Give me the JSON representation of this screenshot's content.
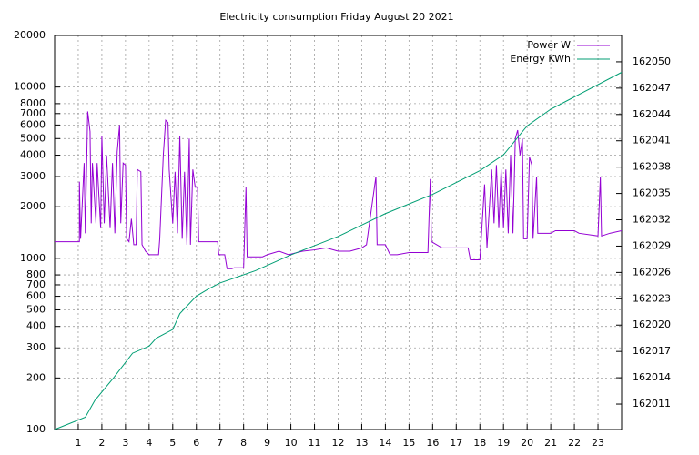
{
  "chart_data": {
    "type": "line",
    "title": "Electricity consumption Friday August 20 2021",
    "ylog": true,
    "grid": true,
    "legend": "top-right",
    "xlim": [
      0,
      24
    ],
    "xticks": [
      1,
      2,
      3,
      4,
      5,
      6,
      7,
      8,
      9,
      10,
      11,
      12,
      13,
      14,
      15,
      16,
      17,
      18,
      19,
      20,
      21,
      22,
      23
    ],
    "ylim": [
      100,
      20000
    ],
    "yticks": [
      100,
      200,
      300,
      400,
      500,
      600,
      700,
      800,
      1000,
      2000,
      3000,
      4000,
      5000,
      6000,
      7000,
      8000,
      10000,
      20000
    ],
    "y2lim": [
      162008.1,
      162053
    ],
    "y2ticks": [
      162011,
      162014,
      162017,
      162020,
      162023,
      162026,
      162029,
      162032,
      162035,
      162038,
      162041,
      162044,
      162047,
      162050
    ],
    "series": [
      {
        "name": "Power W",
        "color": "#9400d3",
        "x": [
          0,
          1.05,
          1.05,
          1.1,
          1.25,
          1.3,
          1.4,
          1.5,
          1.55,
          1.6,
          1.75,
          1.8,
          1.95,
          2.0,
          2.1,
          2.2,
          2.35,
          2.45,
          2.55,
          2.65,
          2.75,
          2.8,
          2.9,
          3.0,
          3.05,
          3.15,
          3.25,
          3.35,
          3.45,
          3.5,
          3.65,
          3.7,
          3.85,
          4.0,
          4.4,
          4.45,
          4.6,
          4.7,
          4.8,
          4.85,
          5.0,
          5.1,
          5.2,
          5.3,
          5.4,
          5.5,
          5.6,
          5.7,
          5.75,
          5.85,
          5.95,
          6.05,
          6.1,
          6.9,
          6.95,
          7.2,
          7.3,
          7.5,
          7.6,
          8.0,
          8.1,
          8.15,
          8.8,
          9.0,
          9.5,
          9.9,
          10.5,
          11.0,
          11.5,
          12.0,
          12.5,
          13.0,
          13.2,
          13.6,
          13.65,
          14.0,
          14.2,
          14.5,
          15.0,
          15.8,
          15.9,
          15.95,
          16.4,
          17.5,
          17.6,
          18.0,
          18.2,
          18.3,
          18.5,
          18.6,
          18.7,
          18.8,
          18.9,
          19.0,
          19.1,
          19.2,
          19.3,
          19.4,
          19.5,
          19.6,
          19.7,
          19.8,
          19.85,
          20.0,
          20.1,
          20.2,
          20.25,
          20.4,
          20.45,
          21.0,
          21.2,
          22.0,
          22.2,
          23.0,
          23.1,
          23.15,
          23.5,
          24.0
        ],
        "values": [
          1250,
          1250,
          2800,
          1300,
          3600,
          1400,
          7200,
          5500,
          1600,
          3600,
          1600,
          3600,
          1500,
          5200,
          1600,
          4000,
          1500,
          3600,
          1400,
          4200,
          6000,
          1600,
          3600,
          3500,
          1300,
          1250,
          1700,
          1200,
          1200,
          3300,
          3200,
          1200,
          1100,
          1050,
          1050,
          1300,
          4000,
          6400,
          6200,
          3300,
          1600,
          3200,
          1400,
          5200,
          1300,
          3200,
          1200,
          5000,
          1200,
          3300,
          2600,
          2600,
          1250,
          1250,
          1050,
          1050,
          870,
          870,
          880,
          880,
          2600,
          1020,
          1020,
          1050,
          1100,
          1050,
          1100,
          1120,
          1150,
          1100,
          1100,
          1150,
          1200,
          3000,
          1200,
          1200,
          1050,
          1050,
          1080,
          1080,
          2900,
          1250,
          1150,
          1150,
          980,
          980,
          2700,
          1150,
          3300,
          1600,
          3500,
          1500,
          3300,
          1500,
          3300,
          1400,
          4000,
          1400,
          5000,
          5600,
          4000,
          5000,
          1300,
          1300,
          3900,
          3500,
          1300,
          3000,
          1400,
          1400,
          1450,
          1450,
          1400,
          1350,
          3000,
          1350,
          1400,
          1450
        ]
      },
      {
        "name": "Energy KWh",
        "color": "#009e73",
        "axis": "y2",
        "x": [
          0,
          1.3,
          1.7,
          2.5,
          3.3,
          4.0,
          4.3,
          5.0,
          5.3,
          6.0,
          6.5,
          7.0,
          8.5,
          10,
          12,
          14,
          16,
          18,
          19,
          20,
          21,
          22,
          24
        ],
        "values": [
          162008.1,
          162009.5,
          162011.4,
          162014,
          162016.8,
          162017.6,
          162018.5,
          162019.5,
          162021.3,
          162023.3,
          162024.1,
          162024.8,
          162026.2,
          162028,
          162030.1,
          162032.7,
          162034.9,
          162037.6,
          162039.4,
          162042.7,
          162044.6,
          162046,
          162048.8
        ]
      }
    ]
  }
}
